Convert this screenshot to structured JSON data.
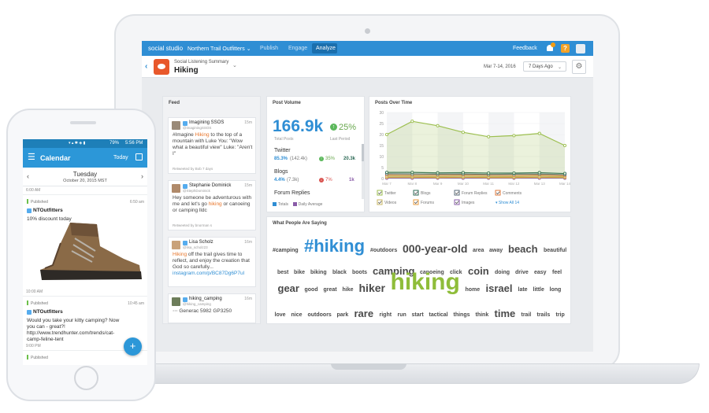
{
  "app": {
    "brand": "social studio",
    "account": "Northern Trail Outfitters",
    "tabs": [
      "Publish",
      "Engage",
      "Analyze"
    ],
    "feedback": "Feedback",
    "help": "?"
  },
  "topic": {
    "subtitle": "Social Listening Summary",
    "title": "Hiking",
    "date_range": "Mar 7-14, 2016",
    "period": "7 Days Ago"
  },
  "feed": {
    "title": "Feed",
    "items": [
      {
        "name": "Imagining SSOS",
        "handle": "@imaginingSSOS",
        "time": "15m",
        "text_parts": [
          "#Imagine ",
          "Hiking",
          " to the top of a mountain with Luke You: \"Wow what a beautiful view\" Luke: \"Aren't I\""
        ],
        "footer": "Retweeted by Bob 7 days"
      },
      {
        "name": "Stephanie Dominick",
        "handle": "@StephDominick",
        "time": "15m",
        "text_parts": [
          "Hey someone be adventurous with me and let's go ",
          "hiking",
          " or canoeing or camping lldc"
        ],
        "footer": "Retweeted by bnorman s"
      },
      {
        "name": "Lisa Scholz",
        "handle": "@lisa_scholz23",
        "time": "16m",
        "text_parts": [
          "Hiking",
          " off the trail gives time to reflect, and enjoy the creation that God so carefully..."
        ],
        "link": "instagram.com/p/BC87Dg6P7ul",
        "footer": ""
      },
      {
        "name": "hiking_camping",
        "handle": "@hiking_camping",
        "time": "16m",
        "text_parts": [
          "Generac 5982 GP3250"
        ],
        "footer": ""
      }
    ]
  },
  "volume": {
    "title": "Post Volume",
    "total": "166.9k",
    "change": "25%",
    "total_label": "Total Posts",
    "change_label": "Last Period",
    "rows": [
      {
        "name": "Twitter",
        "pct": "85.3%",
        "abs": "(142.4k)",
        "change": "35%",
        "last": "20.3k",
        "up": true
      },
      {
        "name": "Blogs",
        "pct": "4.4%",
        "abs": "(7.3k)",
        "change": "7%",
        "last": "1k",
        "up": false
      },
      {
        "name": "Forum Replies",
        "pct": "",
        "abs": "",
        "change": "",
        "last": "",
        "up": true
      }
    ],
    "legend": [
      "Totals",
      "Daily Average"
    ]
  },
  "posts_over_time": {
    "title": "Posts Over Time",
    "legend": [
      "Twitter",
      "Blogs",
      "Forum Replies",
      "Comments",
      "Videos",
      "Forums",
      "Images"
    ],
    "show_all": "Show All 14",
    "show_all_arrow": "▾",
    "colors": {
      "Twitter": "#9cbf4f",
      "Blogs": "#2e6b57",
      "Forum Replies": "#5a6b7a",
      "Comments": "#e07a3b",
      "Videos": "#c8b560",
      "Forums": "#e89b3c",
      "Images": "#8a5ca8"
    }
  },
  "chart_data": {
    "type": "line",
    "title": "Posts Over Time",
    "x": [
      "Mar 7",
      "Mar 8",
      "Mar 9",
      "Mar 10",
      "Mar 11",
      "Mar 12",
      "Mar 13",
      "Mar 14"
    ],
    "ylim": [
      0,
      30
    ],
    "yticks": [
      "30",
      "25",
      "20",
      "15",
      "10",
      "5",
      "0"
    ],
    "series": [
      {
        "name": "Twitter",
        "values": [
          20,
          26,
          24,
          21,
          19,
          19.5,
          20.5,
          15
        ],
        "area": true
      },
      {
        "name": "Blogs",
        "values": [
          2.8,
          2.8,
          2.6,
          2.7,
          2.5,
          2.5,
          2.7,
          2.3
        ]
      },
      {
        "name": "Forum Replies",
        "values": [
          2.2,
          2.1,
          2.0,
          2.1,
          1.9,
          2.0,
          2.1,
          1.8
        ]
      },
      {
        "name": "Comments",
        "values": [
          1.6,
          1.5,
          1.5,
          1.6,
          1.5,
          1.4,
          1.6,
          1.3
        ]
      },
      {
        "name": "Videos",
        "values": [
          1.0,
          1.0,
          0.9,
          1.0,
          0.9,
          0.9,
          1.0,
          0.8
        ]
      },
      {
        "name": "Forums",
        "values": [
          0.6,
          0.6,
          0.5,
          0.6,
          0.5,
          0.5,
          0.6,
          0.5
        ]
      },
      {
        "name": "Images",
        "values": [
          0.2,
          0.2,
          0.2,
          0.2,
          0.2,
          0.2,
          0.2,
          0.2
        ]
      }
    ]
  },
  "words": {
    "title": "What People Are Saying",
    "items": [
      {
        "t": "#camping",
        "s": 7
      },
      {
        "t": "#hiking",
        "s": 22,
        "c": "#2f8ed4"
      },
      {
        "t": "#outdoors",
        "s": 7
      },
      {
        "t": "000-year-old",
        "s": 14
      },
      {
        "t": "area",
        "s": 7
      },
      {
        "t": "away",
        "s": 7
      },
      {
        "t": "beach",
        "s": 13
      },
      {
        "t": "beautiful",
        "s": 7
      },
      {
        "t": "best",
        "s": 7
      },
      {
        "t": "bike",
        "s": 7
      },
      {
        "t": "biking",
        "s": 7
      },
      {
        "t": "black",
        "s": 7
      },
      {
        "t": "boots",
        "s": 7
      },
      {
        "t": "camping",
        "s": 13
      },
      {
        "t": "canoeing",
        "s": 7
      },
      {
        "t": "click",
        "s": 7
      },
      {
        "t": "coin",
        "s": 13
      },
      {
        "t": "doing",
        "s": 7
      },
      {
        "t": "drive",
        "s": 7
      },
      {
        "t": "easy",
        "s": 7
      },
      {
        "t": "feel",
        "s": 7
      },
      {
        "t": "gear",
        "s": 13
      },
      {
        "t": "good",
        "s": 7
      },
      {
        "t": "great",
        "s": 7
      },
      {
        "t": "hike",
        "s": 7
      },
      {
        "t": "hiker",
        "s": 14
      },
      {
        "t": "hiking",
        "s": 30,
        "c": "#8fbd3a"
      },
      {
        "t": "home",
        "s": 7
      },
      {
        "t": "israel",
        "s": 13
      },
      {
        "t": "late",
        "s": 7
      },
      {
        "t": "little",
        "s": 7
      },
      {
        "t": "long",
        "s": 7
      },
      {
        "t": "love",
        "s": 7
      },
      {
        "t": "nice",
        "s": 7
      },
      {
        "t": "outdoors",
        "s": 7
      },
      {
        "t": "park",
        "s": 7
      },
      {
        "t": "rare",
        "s": 13
      },
      {
        "t": "right",
        "s": 7
      },
      {
        "t": "run",
        "s": 7
      },
      {
        "t": "start",
        "s": 7
      },
      {
        "t": "tactical",
        "s": 7
      },
      {
        "t": "things",
        "s": 7
      },
      {
        "t": "think",
        "s": 7
      },
      {
        "t": "time",
        "s": 13
      },
      {
        "t": "trail",
        "s": 7
      },
      {
        "t": "trails",
        "s": 7
      },
      {
        "t": "trip",
        "s": 7
      }
    ]
  },
  "phone": {
    "status_icons": "▾ ▴ ✱ ◈ ▮",
    "battery": "79%",
    "clock": "5:56 PM",
    "title": "Calendar",
    "today": "Today",
    "day": "Tuesday",
    "date": "October 20, 2015 MST",
    "slots": [
      "6:00 AM",
      "10:00 AM",
      "9:00 PM"
    ],
    "posts": [
      {
        "status": "Published",
        "time": "6:50 am",
        "account": "NTOutfitters",
        "text": "10% discount today"
      },
      {
        "status": "Published",
        "time": "10:45 am",
        "account": "NTOutfitters",
        "text": "Would you take your kitty camping? Now you can - great?! http://www.trendhunter.com/trends/cat-camp-feline-tent"
      },
      {
        "status": "Published",
        "time": "",
        "account": "",
        "text": ""
      }
    ],
    "fab": "+"
  }
}
